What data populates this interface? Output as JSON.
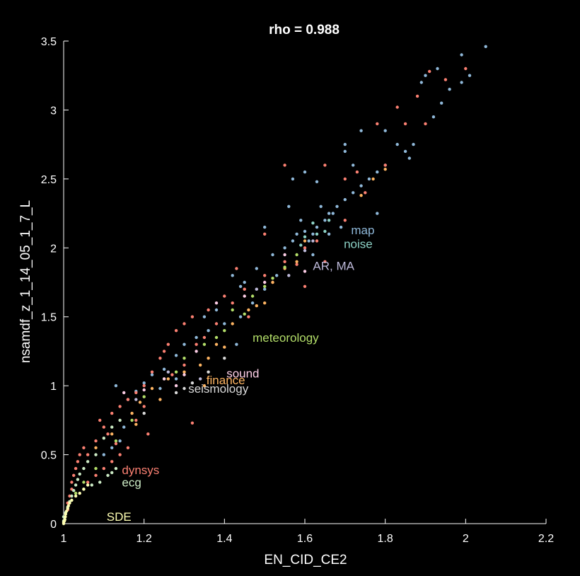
{
  "chart_data": {
    "type": "scatter",
    "title": "rho = 0.988",
    "xlabel": "EN_CID_CE2",
    "ylabel": "nsamdf_z_1_14_05_1_7_L",
    "xlim": [
      1,
      2.2
    ],
    "ylim": [
      0,
      3.5
    ],
    "xticks": [
      1,
      1.2,
      1.4,
      1.6,
      1.8,
      2,
      2.2
    ],
    "yticks": [
      0,
      0.5,
      1,
      1.5,
      2,
      2.5,
      3,
      3.5
    ],
    "xtick_labels": [
      "1",
      "1.2",
      "1.4",
      "1.6",
      "1.8",
      "2",
      "2.2"
    ],
    "ytick_labels": [
      "0",
      "0.5",
      "1",
      "1.5",
      "2",
      "2.5",
      "3",
      "3.5"
    ],
    "grid": false,
    "annotations": [
      {
        "text": "map",
        "x": 1.715,
        "y": 2.1,
        "color": "#8fb8d9"
      },
      {
        "text": "noise",
        "x": 1.697,
        "y": 2.0,
        "color": "#8dd3c7"
      },
      {
        "text": "AR, MA",
        "x": 1.62,
        "y": 1.84,
        "color": "#bebada"
      },
      {
        "text": "meteorology",
        "x": 1.47,
        "y": 1.32,
        "color": "#b3de69"
      },
      {
        "text": "sound",
        "x": 1.405,
        "y": 1.06,
        "color": "#fccde5"
      },
      {
        "text": "finance",
        "x": 1.355,
        "y": 1.01,
        "color": "#fdb462"
      },
      {
        "text": "seismology",
        "x": 1.31,
        "y": 0.95,
        "color": "#d9d9d9"
      },
      {
        "text": "dynsys",
        "x": 1.145,
        "y": 0.36,
        "color": "#fb8072"
      },
      {
        "text": "ecg",
        "x": 1.145,
        "y": 0.27,
        "color": "#ccebc5"
      },
      {
        "text": "SDE",
        "x": 1.107,
        "y": 0.02,
        "color": "#ffffb3"
      }
    ],
    "series": [
      {
        "color": "#8fb8d9",
        "points": [
          [
            1.62,
            2.1
          ],
          [
            1.63,
            2.15
          ],
          [
            1.65,
            2.2
          ],
          [
            1.66,
            2.25
          ],
          [
            1.68,
            2.3
          ],
          [
            1.7,
            2.35
          ],
          [
            1.72,
            2.4
          ],
          [
            1.74,
            2.45
          ],
          [
            1.76,
            2.5
          ],
          [
            1.78,
            2.55
          ],
          [
            1.8,
            2.6
          ],
          [
            1.85,
            2.7
          ],
          [
            1.87,
            2.75
          ],
          [
            1.9,
            3.25
          ],
          [
            1.93,
            3.3
          ],
          [
            1.96,
            3.15
          ],
          [
            1.99,
            3.2
          ],
          [
            2.01,
            3.25
          ],
          [
            2.05,
            3.46
          ],
          [
            1.99,
            3.4
          ],
          [
            1.94,
            3.05
          ],
          [
            1.89,
            3.2
          ],
          [
            1.7,
            2.7
          ],
          [
            1.7,
            2.75
          ],
          [
            1.74,
            2.85
          ],
          [
            1.72,
            2.6
          ],
          [
            1.78,
            2.25
          ],
          [
            1.58,
            2.1
          ],
          [
            1.6,
            2.12
          ],
          [
            1.61,
            2.05
          ],
          [
            1.59,
            2.2
          ],
          [
            1.57,
            2.05
          ],
          [
            1.55,
            2.0
          ],
          [
            1.5,
            2.15
          ],
          [
            1.56,
            2.3
          ],
          [
            1.57,
            2.5
          ],
          [
            1.6,
            2.55
          ],
          [
            1.63,
            2.48
          ],
          [
            1.52,
            1.95
          ],
          [
            1.48,
            1.85
          ],
          [
            1.45,
            1.75
          ],
          [
            1.44,
            1.72
          ],
          [
            1.42,
            1.8
          ],
          [
            1.47,
            1.6
          ],
          [
            1.44,
            1.5
          ],
          [
            1.4,
            1.45
          ],
          [
            1.36,
            1.4
          ],
          [
            1.33,
            1.35
          ],
          [
            1.3,
            1.3
          ],
          [
            1.28,
            1.22
          ],
          [
            1.25,
            1.12
          ],
          [
            1.22,
            1.08
          ],
          [
            1.2,
            1.02
          ],
          [
            1.18,
            0.96
          ],
          [
            1.16,
            0.9
          ],
          [
            1.13,
            1.0
          ],
          [
            1.15,
            0.7
          ],
          [
            1.14,
            0.6
          ],
          [
            1.12,
            0.55
          ],
          [
            1.1,
            0.5
          ],
          [
            1.35,
            1.5
          ],
          [
            1.38,
            1.55
          ],
          [
            1.53,
            1.8
          ],
          [
            1.67,
            2.25
          ],
          [
            1.69,
            2.15
          ],
          [
            1.64,
            2.3
          ],
          [
            1.66,
            2.1
          ],
          [
            1.83,
            2.75
          ],
          [
            1.86,
            2.65
          ],
          [
            1.92,
            2.95
          ],
          [
            1.8,
            2.85
          ],
          [
            1.62,
            1.95
          ],
          [
            1.5,
            1.7
          ],
          [
            1.43,
            1.3
          ],
          [
            1.28,
            1.05
          ],
          [
            1.24,
            0.98
          ]
        ]
      },
      {
        "color": "#fb8072",
        "points": [
          [
            1.01,
            0.1
          ],
          [
            1.01,
            0.15
          ],
          [
            1.015,
            0.2
          ],
          [
            1.02,
            0.25
          ],
          [
            1.02,
            0.3
          ],
          [
            1.025,
            0.35
          ],
          [
            1.03,
            0.4
          ],
          [
            1.035,
            0.45
          ],
          [
            1.04,
            0.5
          ],
          [
            1.05,
            0.55
          ],
          [
            1.06,
            0.5
          ],
          [
            1.08,
            0.6
          ],
          [
            1.1,
            0.7
          ],
          [
            1.12,
            0.8
          ],
          [
            1.14,
            0.85
          ],
          [
            1.16,
            0.9
          ],
          [
            1.18,
            0.95
          ],
          [
            1.2,
            1.0
          ],
          [
            1.22,
            1.1
          ],
          [
            1.24,
            1.2
          ],
          [
            1.26,
            1.3
          ],
          [
            1.28,
            1.4
          ],
          [
            1.3,
            1.45
          ],
          [
            1.32,
            1.5
          ],
          [
            1.36,
            1.55
          ],
          [
            1.4,
            1.65
          ],
          [
            1.45,
            1.7
          ],
          [
            1.5,
            1.8
          ],
          [
            1.55,
            1.9
          ],
          [
            1.6,
            2.0
          ],
          [
            1.65,
            1.9
          ],
          [
            1.7,
            2.2
          ],
          [
            1.75,
            2.4
          ],
          [
            1.8,
            2.6
          ],
          [
            1.85,
            2.9
          ],
          [
            1.88,
            3.1
          ],
          [
            1.91,
            3.28
          ],
          [
            1.95,
            3.22
          ],
          [
            2.0,
            3.3
          ],
          [
            1.7,
            2.5
          ],
          [
            1.65,
            2.6
          ],
          [
            1.55,
            2.6
          ],
          [
            1.5,
            2.1
          ],
          [
            1.46,
            1.5
          ],
          [
            1.42,
            1.6
          ],
          [
            1.38,
            1.45
          ],
          [
            1.33,
            1.3
          ],
          [
            1.3,
            1.15
          ],
          [
            1.27,
            1.08
          ],
          [
            1.2,
            0.85
          ],
          [
            1.18,
            0.75
          ],
          [
            1.16,
            0.55
          ],
          [
            1.14,
            0.5
          ],
          [
            1.12,
            0.45
          ],
          [
            1.1,
            0.4
          ],
          [
            1.08,
            0.35
          ],
          [
            1.06,
            0.3
          ],
          [
            1.09,
            0.75
          ],
          [
            1.11,
            0.65
          ],
          [
            1.13,
            0.58
          ],
          [
            1.25,
            1.25
          ],
          [
            1.35,
            1.35
          ],
          [
            1.52,
            1.75
          ],
          [
            1.6,
            1.72
          ],
          [
            1.73,
            2.55
          ],
          [
            1.78,
            2.9
          ],
          [
            1.83,
            3.02
          ],
          [
            1.9,
            2.9
          ],
          [
            1.63,
            2.05
          ],
          [
            1.58,
            1.88
          ],
          [
            1.43,
            1.85
          ],
          [
            1.32,
            0.73
          ],
          [
            1.21,
            0.65
          ]
        ]
      },
      {
        "color": "#fdb462",
        "points": [
          [
            1.08,
            0.55
          ],
          [
            1.12,
            0.65
          ],
          [
            1.17,
            0.8
          ],
          [
            1.19,
            0.88
          ],
          [
            1.22,
            0.98
          ],
          [
            1.26,
            1.05
          ],
          [
            1.3,
            1.1
          ],
          [
            1.34,
            1.15
          ],
          [
            1.38,
            1.3
          ],
          [
            1.42,
            1.45
          ],
          [
            1.46,
            1.55
          ],
          [
            1.48,
            1.58
          ],
          [
            1.5,
            1.6
          ],
          [
            1.52,
            1.75
          ],
          [
            1.55,
            1.85
          ],
          [
            1.58,
            1.9
          ],
          [
            1.6,
            2.05
          ],
          [
            1.74,
            2.38
          ],
          [
            1.77,
            2.5
          ],
          [
            1.8,
            2.57
          ],
          [
            1.36,
            1.2
          ],
          [
            1.4,
            1.28
          ],
          [
            1.35,
            1.0
          ],
          [
            1.24,
            0.9
          ],
          [
            1.18,
            0.72
          ]
        ]
      },
      {
        "color": "#b3de69",
        "points": [
          [
            1.03,
            0.22
          ],
          [
            1.05,
            0.3
          ],
          [
            1.08,
            0.4
          ],
          [
            1.13,
            0.6
          ],
          [
            1.17,
            0.75
          ],
          [
            1.2,
            0.92
          ],
          [
            1.25,
            1.05
          ],
          [
            1.3,
            1.2
          ],
          [
            1.35,
            1.3
          ],
          [
            1.4,
            1.4
          ],
          [
            1.45,
            1.52
          ],
          [
            1.5,
            1.72
          ],
          [
            1.52,
            1.78
          ],
          [
            1.55,
            1.86
          ],
          [
            1.58,
            1.95
          ],
          [
            1.47,
            1.65
          ],
          [
            1.42,
            1.55
          ],
          [
            1.38,
            1.35
          ],
          [
            1.28,
            1.1
          ]
        ]
      },
      {
        "color": "#ccebc5",
        "points": [
          [
            1.0,
            0.02
          ],
          [
            1.0,
            0.05
          ],
          [
            1.005,
            0.08
          ],
          [
            1.01,
            0.12
          ],
          [
            1.015,
            0.16
          ],
          [
            1.02,
            0.2
          ],
          [
            1.025,
            0.24
          ],
          [
            1.03,
            0.28
          ],
          [
            1.035,
            0.32
          ],
          [
            1.04,
            0.36
          ],
          [
            1.05,
            0.4
          ],
          [
            1.06,
            0.45
          ],
          [
            1.08,
            0.5
          ],
          [
            1.1,
            0.62
          ],
          [
            1.12,
            0.7
          ],
          [
            1.14,
            0.75
          ],
          [
            1.13,
            0.4
          ],
          [
            1.12,
            0.37
          ],
          [
            1.11,
            0.35
          ],
          [
            1.09,
            0.3
          ],
          [
            1.07,
            0.28
          ],
          [
            1.05,
            0.25
          ]
        ]
      },
      {
        "color": "#ffffb3",
        "points": [
          [
            1.0,
            0.0
          ],
          [
            1.0,
            0.01
          ],
          [
            1.002,
            0.02
          ],
          [
            1.003,
            0.03
          ],
          [
            1.004,
            0.05
          ],
          [
            1.005,
            0.07
          ],
          [
            1.007,
            0.09
          ],
          [
            1.01,
            0.11
          ],
          [
            1.012,
            0.13
          ],
          [
            1.015,
            0.15
          ],
          [
            1.02,
            0.17
          ],
          [
            1.03,
            0.2
          ],
          [
            1.04,
            0.22
          ],
          [
            1.05,
            0.25
          ],
          [
            1.06,
            0.28
          ]
        ]
      },
      {
        "color": "#fccde5",
        "points": [
          [
            1.15,
            0.95
          ],
          [
            1.2,
            0.97
          ],
          [
            1.25,
            1.05
          ],
          [
            1.3,
            1.08
          ],
          [
            1.33,
            1.25
          ],
          [
            1.38,
            1.6
          ],
          [
            1.45,
            1.65
          ],
          [
            1.5,
            1.75
          ],
          [
            1.55,
            1.95
          ],
          [
            1.6,
            1.83
          ],
          [
            1.28,
            1.0
          ]
        ]
      },
      {
        "color": "#bebada",
        "points": [
          [
            1.18,
            0.9
          ],
          [
            1.26,
            1.1
          ],
          [
            1.34,
            1.05
          ],
          [
            1.48,
            1.7
          ],
          [
            1.56,
            1.8
          ],
          [
            1.62,
            2.05
          ],
          [
            1.6,
            1.98
          ]
        ]
      },
      {
        "color": "#d9d9d9",
        "points": [
          [
            1.2,
            0.8
          ],
          [
            1.28,
            0.95
          ],
          [
            1.32,
            1.02
          ],
          [
            1.36,
            1.1
          ],
          [
            1.3,
            0.98
          ],
          [
            1.4,
            1.2
          ]
        ]
      },
      {
        "color": "#8dd3c7",
        "points": [
          [
            1.6,
            2.08
          ],
          [
            1.63,
            2.1
          ],
          [
            1.66,
            2.2
          ],
          [
            1.62,
            2.18
          ],
          [
            1.59,
            2.02
          ],
          [
            1.65,
            2.12
          ]
        ]
      }
    ]
  }
}
